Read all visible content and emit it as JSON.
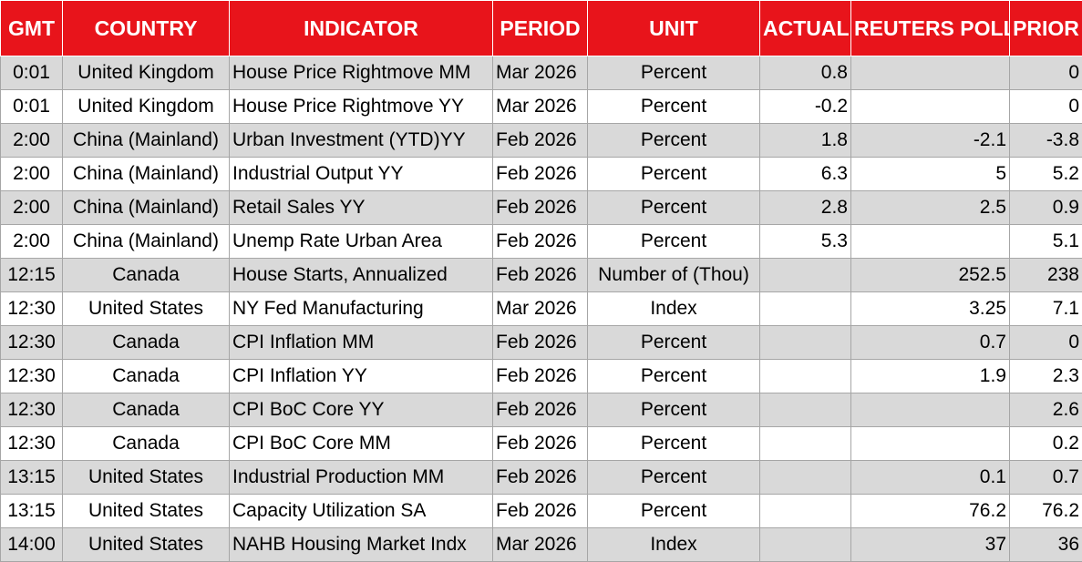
{
  "table": {
    "headers": [
      "GMT",
      "COUNTRY",
      "INDICATOR",
      "PERIOD",
      "UNIT",
      "ACTUAL",
      "REUTERS POLL",
      "PRIOR"
    ],
    "rows": [
      {
        "gmt": "0:01",
        "country": "United Kingdom",
        "indicator": "House Price Rightmove MM",
        "period": "Mar 2026",
        "unit": "Percent",
        "actual": "0.8",
        "poll": "",
        "prior": "0"
      },
      {
        "gmt": "0:01",
        "country": "United Kingdom",
        "indicator": "House Price Rightmove YY",
        "period": "Mar 2026",
        "unit": "Percent",
        "actual": "-0.2",
        "poll": "",
        "prior": "0"
      },
      {
        "gmt": "2:00",
        "country": "China (Mainland)",
        "indicator": "Urban Investment (YTD)YY",
        "period": "Feb 2026",
        "unit": "Percent",
        "actual": "1.8",
        "poll": "-2.1",
        "prior": "-3.8"
      },
      {
        "gmt": "2:00",
        "country": "China (Mainland)",
        "indicator": "Industrial Output YY",
        "period": "Feb 2026",
        "unit": "Percent",
        "actual": "6.3",
        "poll": "5",
        "prior": "5.2"
      },
      {
        "gmt": "2:00",
        "country": "China (Mainland)",
        "indicator": "Retail Sales YY",
        "period": "Feb 2026",
        "unit": "Percent",
        "actual": "2.8",
        "poll": "2.5",
        "prior": "0.9"
      },
      {
        "gmt": "2:00",
        "country": "China (Mainland)",
        "indicator": "Unemp Rate Urban Area",
        "period": "Feb 2026",
        "unit": "Percent",
        "actual": "5.3",
        "poll": "",
        "prior": "5.1"
      },
      {
        "gmt": "12:15",
        "country": "Canada",
        "indicator": "House Starts, Annualized",
        "period": "Feb 2026",
        "unit": "Number of (Thou)",
        "actual": "",
        "poll": "252.5",
        "prior": "238"
      },
      {
        "gmt": "12:30",
        "country": "United States",
        "indicator": "NY Fed Manufacturing",
        "period": "Mar 2026",
        "unit": "Index",
        "actual": "",
        "poll": "3.25",
        "prior": "7.1"
      },
      {
        "gmt": "12:30",
        "country": "Canada",
        "indicator": "CPI Inflation MM",
        "period": "Feb 2026",
        "unit": "Percent",
        "actual": "",
        "poll": "0.7",
        "prior": "0"
      },
      {
        "gmt": "12:30",
        "country": "Canada",
        "indicator": "CPI Inflation YY",
        "period": "Feb 2026",
        "unit": "Percent",
        "actual": "",
        "poll": "1.9",
        "prior": "2.3"
      },
      {
        "gmt": "12:30",
        "country": "Canada",
        "indicator": "CPI BoC Core YY",
        "period": "Feb 2026",
        "unit": "Percent",
        "actual": "",
        "poll": "",
        "prior": "2.6"
      },
      {
        "gmt": "12:30",
        "country": "Canada",
        "indicator": "CPI BoC Core MM",
        "period": "Feb 2026",
        "unit": "Percent",
        "actual": "",
        "poll": "",
        "prior": "0.2"
      },
      {
        "gmt": "13:15",
        "country": "United States",
        "indicator": "Industrial Production MM",
        "period": "Feb 2026",
        "unit": "Percent",
        "actual": "",
        "poll": "0.1",
        "prior": "0.7"
      },
      {
        "gmt": "13:15",
        "country": "United States",
        "indicator": "Capacity Utilization SA",
        "period": "Feb 2026",
        "unit": "Percent",
        "actual": "",
        "poll": "76.2",
        "prior": "76.2"
      },
      {
        "gmt": "14:00",
        "country": "United States",
        "indicator": "NAHB Housing Market Indx",
        "period": "Mar 2026",
        "unit": "Index",
        "actual": "",
        "poll": "37",
        "prior": "36"
      }
    ]
  },
  "colors": {
    "header_bg": "#e8141b",
    "header_text": "#ffffff",
    "row_shade": "#d9d9d9",
    "row_plain": "#ffffff",
    "grid": "#a6a6a6"
  }
}
